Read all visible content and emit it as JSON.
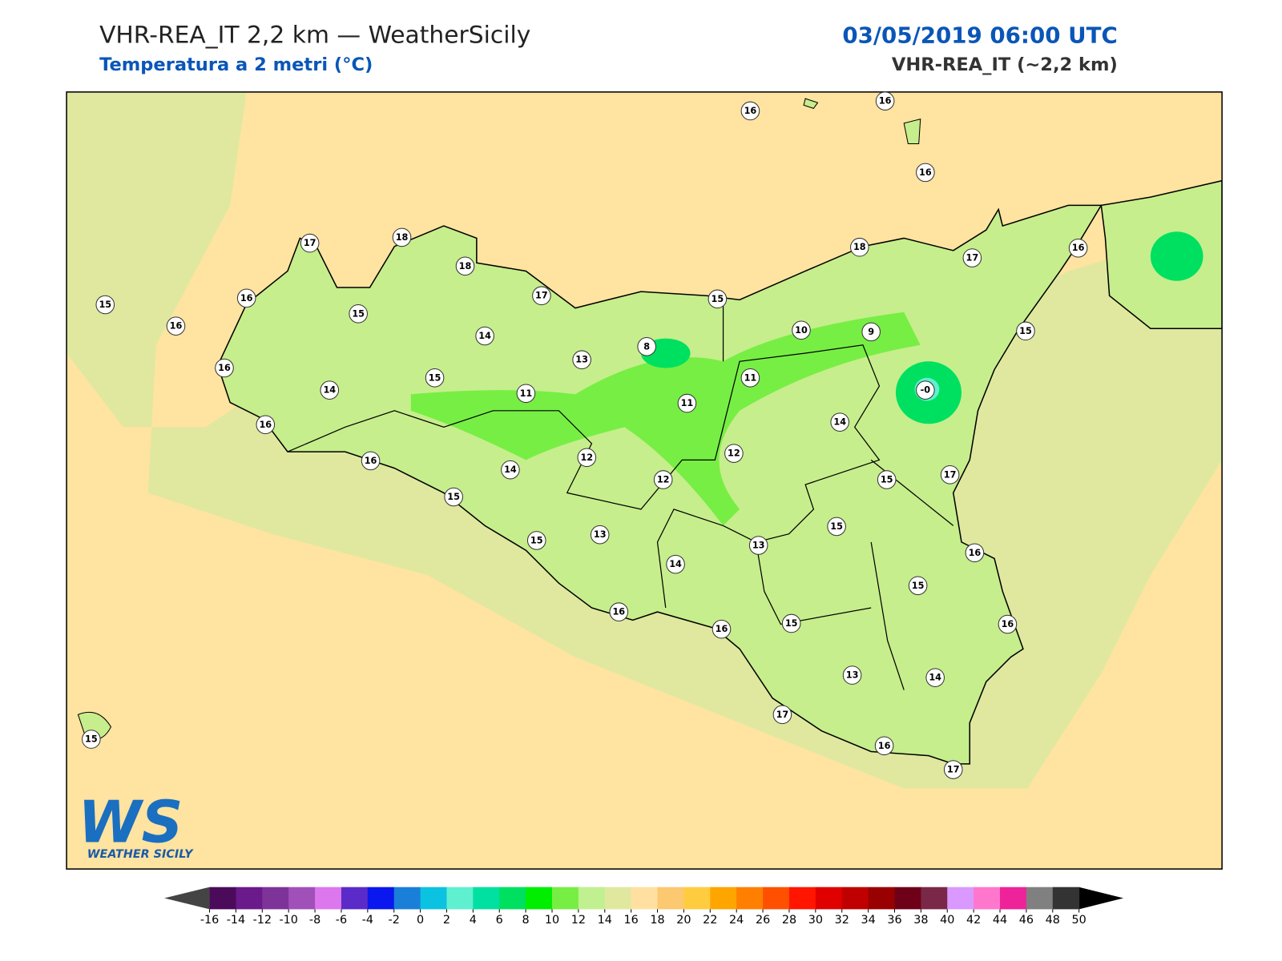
{
  "header": {
    "title": "VHR-REA_IT 2,2 km — WeatherSicily",
    "subtitle": "Temperatura a 2 metri (°C)",
    "datetime": "03/05/2019 06:00 UTC",
    "model": "VHR-REA_IT (~2,2 km)"
  },
  "stations": [
    "16",
    "16",
    "16",
    "17",
    "18",
    "18",
    "17",
    "18",
    "17",
    "16",
    "15",
    "16",
    "15",
    "16",
    "15",
    "15",
    "14",
    "8",
    "13",
    "10",
    "9",
    "16",
    "15",
    "14",
    "11",
    "-0",
    "11",
    "11",
    "16",
    "14",
    "12",
    "12",
    "16",
    "14",
    "12",
    "15",
    "17",
    "15",
    "15",
    "15",
    "13",
    "13",
    "16",
    "14",
    "15",
    "16",
    "16",
    "15",
    "16",
    "13",
    "14",
    "17",
    "15",
    "16",
    "17"
  ],
  "logo": {
    "mark": "WS",
    "name": "WEATHER SICILY"
  },
  "colorbar": {
    "ticks": [
      -16,
      -14,
      -12,
      -10,
      -8,
      -6,
      -4,
      -2,
      0,
      2,
      4,
      6,
      8,
      10,
      12,
      14,
      16,
      18,
      20,
      22,
      24,
      26,
      28,
      30,
      32,
      34,
      36,
      38,
      40,
      42,
      44,
      46,
      48,
      50
    ],
    "colors": [
      "#4b0a5a",
      "#6a1a8a",
      "#7e3399",
      "#a050b8",
      "#dd77ee",
      "#5a2bc8",
      "#0a17ee",
      "#1a7fd8",
      "#0bc3e0",
      "#5ff0d0",
      "#00e0a0",
      "#00e060",
      "#00ee00",
      "#77ee44",
      "#c0f090",
      "#e0e8a0",
      "#ffe0a0",
      "#fcc870",
      "#ffcc40",
      "#ffa500",
      "#ff8000",
      "#ff5000",
      "#ff1500",
      "#e00000",
      "#c00000",
      "#990000",
      "#6e0018",
      "#7a2848",
      "#d999ff",
      "#ff77cc",
      "#ee2299",
      "#808080",
      "#333333"
    ],
    "under": "#444444",
    "over": "#000000"
  }
}
